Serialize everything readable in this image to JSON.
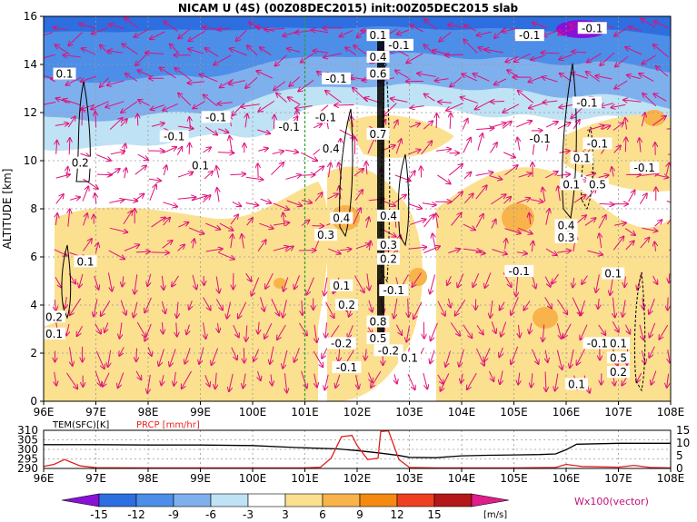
{
  "title": "NICAM U (4S) (00Z08DEC2015) init:00Z05DEC2015 slab",
  "colors": {
    "vector": "#e0107a",
    "temp_line": "#000000",
    "precip_line": "#e02020",
    "divider": "#2ea02e"
  },
  "colorbar": {
    "labels": [
      "-15",
      "-12",
      "-9",
      "-6",
      "-3",
      "3",
      "6",
      "9",
      "12",
      "15"
    ],
    "colors": [
      "#8a10d8",
      "#2d6ee0",
      "#4c8ee8",
      "#7fb0ee",
      "#bfe2f4",
      "#ffffff",
      "#fbe08f",
      "#f8b34a",
      "#f48a10",
      "#ee4020",
      "#b41818",
      "#e01e8a"
    ],
    "unit": "[m/s]",
    "vector_label": "Wx100(vector)"
  },
  "chart_data": [
    {
      "type": "heatmap",
      "title": "NICAM U (4S) (00Z08DEC2015) init:00Z05DEC2015 slab",
      "ylabel": "ALTITUDE [km]",
      "xlabel": "",
      "x_ticks": [
        "96E",
        "97E",
        "98E",
        "99E",
        "100E",
        "101E",
        "102E",
        "103E",
        "104E",
        "105E",
        "106E",
        "107E",
        "108E"
      ],
      "y_ticks": [
        "0",
        "2",
        "4",
        "6",
        "8",
        "10",
        "12",
        "14",
        "16"
      ],
      "xlim": [
        96,
        108
      ],
      "ylim": [
        0,
        16
      ],
      "grid": true,
      "vertical_marker_lon": 101,
      "contour_labels": [
        {
          "lon": 96.4,
          "alt": 13.6,
          "text": "0.1"
        },
        {
          "lon": 96.7,
          "alt": 9.9,
          "text": "0.2"
        },
        {
          "lon": 96.8,
          "alt": 5.8,
          "text": "0.1"
        },
        {
          "lon": 96.2,
          "alt": 3.5,
          "text": "0.2"
        },
        {
          "lon": 96.2,
          "alt": 2.8,
          "text": "0.1"
        },
        {
          "lon": 99.3,
          "alt": 11.8,
          "text": "-0.1"
        },
        {
          "lon": 98.5,
          "alt": 11.0,
          "text": "-0.1"
        },
        {
          "lon": 99.0,
          "alt": 9.8,
          "text": "0.1"
        },
        {
          "lon": 100.7,
          "alt": 11.4,
          "text": "-0.1"
        },
        {
          "lon": 101.6,
          "alt": 13.4,
          "text": "-0.1"
        },
        {
          "lon": 101.4,
          "alt": 11.8,
          "text": "-0.1"
        },
        {
          "lon": 101.5,
          "alt": 10.5,
          "text": "0.4"
        },
        {
          "lon": 102.4,
          "alt": 15.2,
          "text": "0.1"
        },
        {
          "lon": 102.4,
          "alt": 14.3,
          "text": "0.4"
        },
        {
          "lon": 102.4,
          "alt": 13.6,
          "text": "0.6"
        },
        {
          "lon": 102.8,
          "alt": 14.8,
          "text": "-0.1"
        },
        {
          "lon": 102.4,
          "alt": 11.1,
          "text": "0.7"
        },
        {
          "lon": 101.7,
          "alt": 7.6,
          "text": "0.4"
        },
        {
          "lon": 101.4,
          "alt": 6.9,
          "text": "0.3"
        },
        {
          "lon": 102.6,
          "alt": 7.7,
          "text": "0.4"
        },
        {
          "lon": 102.6,
          "alt": 6.5,
          "text": "0.3"
        },
        {
          "lon": 102.6,
          "alt": 5.9,
          "text": "0.2"
        },
        {
          "lon": 101.7,
          "alt": 4.8,
          "text": "0.1"
        },
        {
          "lon": 101.8,
          "alt": 4.0,
          "text": "0.2"
        },
        {
          "lon": 102.7,
          "alt": 4.6,
          "text": "-0.1"
        },
        {
          "lon": 102.4,
          "alt": 3.3,
          "text": "0.8"
        },
        {
          "lon": 102.4,
          "alt": 2.6,
          "text": "0.5"
        },
        {
          "lon": 101.7,
          "alt": 2.4,
          "text": "-0.2"
        },
        {
          "lon": 102.6,
          "alt": 2.1,
          "text": "-0.2"
        },
        {
          "lon": 103.0,
          "alt": 1.8,
          "text": "0.1"
        },
        {
          "lon": 101.8,
          "alt": 1.4,
          "text": "-0.1"
        },
        {
          "lon": 105.3,
          "alt": 15.2,
          "text": "-0.1"
        },
        {
          "lon": 106.5,
          "alt": 15.5,
          "text": "-0.1"
        },
        {
          "lon": 106.4,
          "alt": 12.4,
          "text": "-0.1"
        },
        {
          "lon": 105.5,
          "alt": 10.9,
          "text": "-0.1"
        },
        {
          "lon": 106.6,
          "alt": 10.7,
          "text": "-0.1"
        },
        {
          "lon": 107.5,
          "alt": 9.7,
          "text": "-0.1"
        },
        {
          "lon": 106.3,
          "alt": 10.1,
          "text": "0.1"
        },
        {
          "lon": 106.1,
          "alt": 9.0,
          "text": "0.1"
        },
        {
          "lon": 106.6,
          "alt": 9.0,
          "text": "0.5"
        },
        {
          "lon": 106.0,
          "alt": 7.3,
          "text": "0.4"
        },
        {
          "lon": 106.0,
          "alt": 6.8,
          "text": "0.3"
        },
        {
          "lon": 105.1,
          "alt": 5.4,
          "text": "-0.1"
        },
        {
          "lon": 106.9,
          "alt": 5.3,
          "text": "0.1"
        },
        {
          "lon": 106.6,
          "alt": 2.4,
          "text": "-0.1"
        },
        {
          "lon": 107.0,
          "alt": 2.4,
          "text": "0.1"
        },
        {
          "lon": 107.0,
          "alt": 1.8,
          "text": "0.5"
        },
        {
          "lon": 107.0,
          "alt": 1.2,
          "text": "0.2"
        },
        {
          "lon": 106.2,
          "alt": 0.7,
          "text": "0.1"
        }
      ]
    },
    {
      "type": "line",
      "x_ticks": [
        "96E",
        "97E",
        "98E",
        "99E",
        "100E",
        "101E",
        "102E",
        "103E",
        "104E",
        "105E",
        "106E",
        "107E",
        "108E"
      ],
      "xlim": [
        96,
        108
      ],
      "left_axis": {
        "label": "TEM(SFC)[K]",
        "ticks": [
          "290",
          "295",
          "300",
          "305",
          "310"
        ],
        "range": [
          290,
          310
        ]
      },
      "right_axis": {
        "label": "PRCP [mm/hr]",
        "ticks": [
          "0",
          "5",
          "10",
          "15"
        ],
        "range": [
          0,
          15
        ]
      },
      "series": [
        {
          "name": "TEM(SFC)[K]",
          "color": "#000000",
          "x": [
            96,
            97,
            98,
            99,
            100,
            100.8,
            101.2,
            101.6,
            102.0,
            102.4,
            102.8,
            103.0,
            103.5,
            104,
            104.5,
            105,
            105.5,
            105.8,
            106.0,
            106.2,
            107,
            108
          ],
          "y": [
            302.5,
            302.5,
            302.3,
            302.3,
            302.0,
            301.0,
            300.6,
            300.3,
            299.4,
            298.2,
            296.8,
            295.8,
            295.6,
            296.6,
            296.9,
            297.1,
            297.3,
            297.6,
            299.8,
            302.7,
            303.2,
            303.2
          ]
        },
        {
          "name": "PRCP [mm/hr]",
          "color": "#e02020",
          "x": [
            96,
            96.2,
            96.4,
            96.7,
            97,
            98,
            99,
            100,
            101,
            101.3,
            101.5,
            101.7,
            101.9,
            102.0,
            102.2,
            102.4,
            102.45,
            102.6,
            102.8,
            103.0,
            103.5,
            104,
            105,
            105.8,
            106.0,
            106.3,
            107,
            107.3,
            107.6,
            108
          ],
          "y": [
            0.8,
            1.6,
            3.5,
            1.0,
            0.3,
            0.2,
            0.2,
            0.2,
            0.2,
            0.5,
            4.0,
            12.5,
            13.0,
            9.0,
            3.5,
            4.0,
            14.5,
            14.8,
            3.5,
            0.4,
            0.2,
            0.2,
            0.2,
            0.4,
            1.6,
            0.8,
            0.5,
            1.2,
            0.4,
            0.2
          ]
        }
      ]
    }
  ]
}
